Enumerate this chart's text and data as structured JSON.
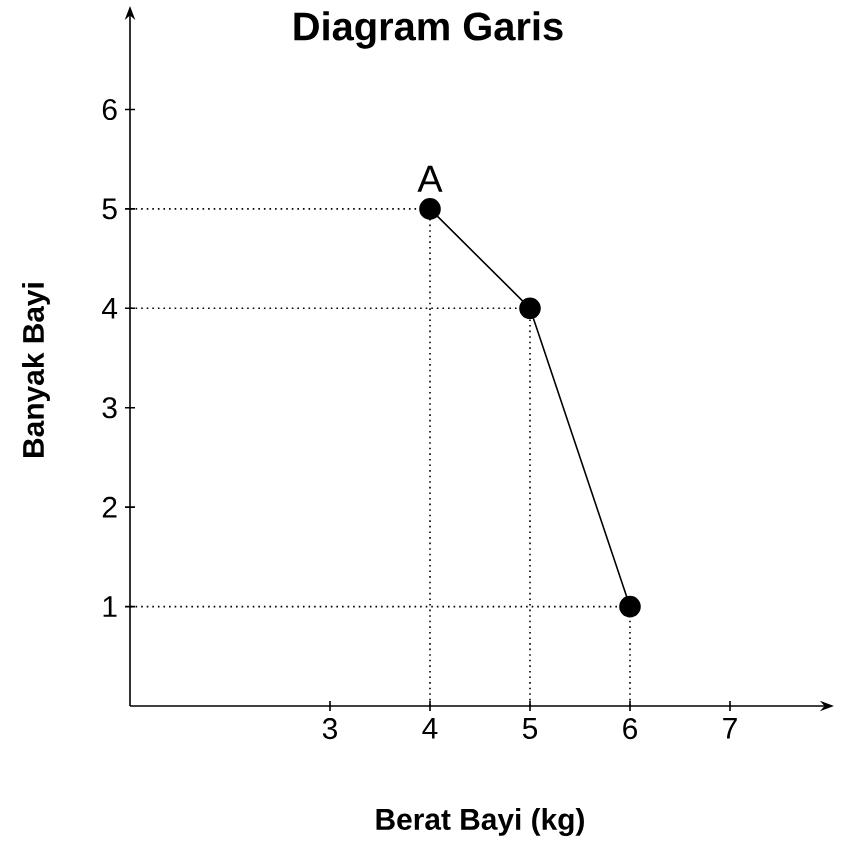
{
  "chart_data": {
    "type": "line",
    "title": "Diagram Garis",
    "xlabel": "Berat Bayi (kg)",
    "ylabel": "Banyak Bayi",
    "x": [
      4,
      5,
      6
    ],
    "values": [
      5,
      4,
      1
    ],
    "color": "#000000",
    "marker": "circle",
    "line_style": "solid",
    "xlim": [
      1,
      7.9
    ],
    "ylim": [
      0,
      6.9
    ],
    "xticks": [
      3,
      4,
      5,
      6,
      7
    ],
    "yticks": [
      1,
      2,
      3,
      4,
      5,
      6
    ],
    "annotations": [
      {
        "text": "A",
        "x": 4,
        "y": 5
      }
    ],
    "ref_lines": [
      {
        "axis": "y",
        "value": 5,
        "line_style": "dotted"
      },
      {
        "axis": "y",
        "value": 4,
        "line_style": "dotted"
      },
      {
        "axis": "y",
        "value": 1,
        "line_style": "dotted"
      },
      {
        "axis": "x",
        "value": 4,
        "line_style": "dotted"
      },
      {
        "axis": "x",
        "value": 5,
        "line_style": "dotted"
      },
      {
        "axis": "x",
        "value": 6,
        "line_style": "dotted"
      }
    ]
  }
}
